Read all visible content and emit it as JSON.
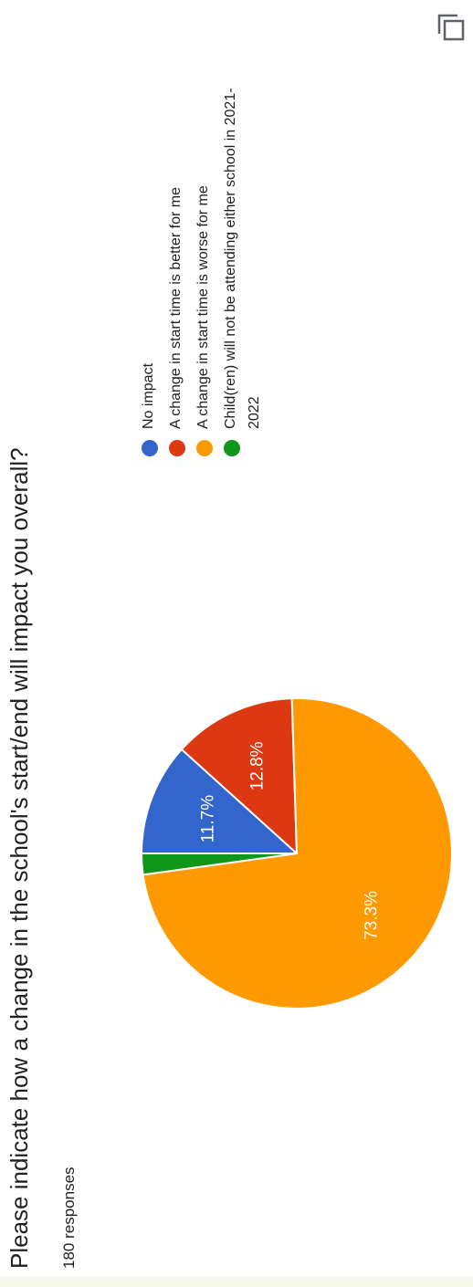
{
  "question": "Please indicate how a change in the school's start/end will impact you overall?",
  "responses_text": "180 responses",
  "copy_icon": "copy-chart-icon",
  "chart_data": {
    "type": "pie",
    "title": "Please indicate how a change in the school's start/end will impact you overall?",
    "total_responses": 180,
    "labels": [
      "No impact",
      "A change in start time is better for me",
      "A change in start time is worse for me",
      "Child(ren) will not be attending either school in 2021-2022"
    ],
    "values": [
      11.7,
      12.8,
      73.3,
      2.2
    ],
    "value_labels": [
      "11.7%",
      "12.8%",
      "73.3%",
      ""
    ],
    "colors": [
      "#3366cc",
      "#dc3912",
      "#ff9900",
      "#109618"
    ],
    "legend_position": "right"
  }
}
